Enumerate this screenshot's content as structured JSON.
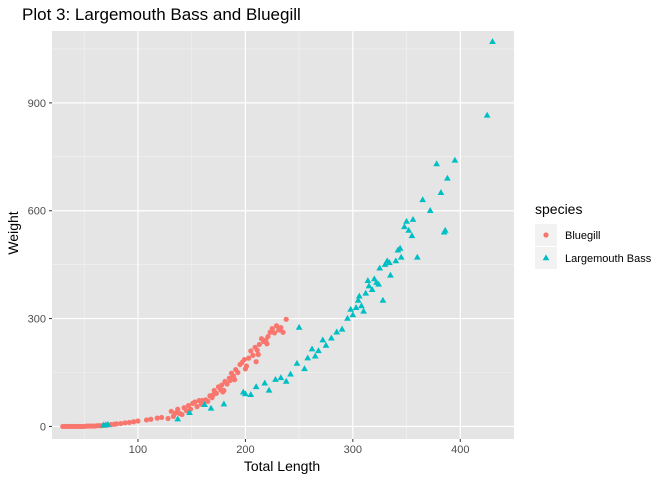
{
  "chart_data": {
    "type": "scatter",
    "title": "Plot 3: Largemouth Bass and Bluegill",
    "xlabel": "Total Length",
    "ylabel": "Weight",
    "xlim": [
      20,
      450
    ],
    "ylim": [
      -35,
      1100
    ],
    "x_ticks": [
      100,
      200,
      300,
      400
    ],
    "y_ticks": [
      0,
      300,
      600,
      900
    ],
    "grid": true,
    "legend": {
      "title": "species",
      "position": "right"
    },
    "series": [
      {
        "name": "Bluegill",
        "color": "#F8766D",
        "shape": "circle",
        "points": [
          [
            30,
            0
          ],
          [
            32,
            0
          ],
          [
            34,
            0
          ],
          [
            36,
            0
          ],
          [
            38,
            0
          ],
          [
            40,
            0
          ],
          [
            42,
            0
          ],
          [
            44,
            0
          ],
          [
            46,
            0
          ],
          [
            48,
            0
          ],
          [
            50,
            0
          ],
          [
            52,
            1
          ],
          [
            54,
            1
          ],
          [
            56,
            1
          ],
          [
            58,
            1
          ],
          [
            60,
            1
          ],
          [
            62,
            2
          ],
          [
            64,
            2
          ],
          [
            66,
            2
          ],
          [
            68,
            3
          ],
          [
            70,
            3
          ],
          [
            72,
            4
          ],
          [
            75,
            5
          ],
          [
            78,
            6
          ],
          [
            80,
            7
          ],
          [
            84,
            8
          ],
          [
            88,
            10
          ],
          [
            92,
            11
          ],
          [
            96,
            13
          ],
          [
            100,
            15
          ],
          [
            108,
            18
          ],
          [
            112,
            20
          ],
          [
            118,
            23
          ],
          [
            122,
            25
          ],
          [
            128,
            22
          ],
          [
            131,
            42
          ],
          [
            133,
            28
          ],
          [
            135,
            37
          ],
          [
            137,
            48
          ],
          [
            139,
            36
          ],
          [
            141,
            33
          ],
          [
            143,
            52
          ],
          [
            145,
            44
          ],
          [
            147,
            58
          ],
          [
            149,
            48
          ],
          [
            151,
            64
          ],
          [
            153,
            68
          ],
          [
            155,
            55
          ],
          [
            157,
            72
          ],
          [
            159,
            62
          ],
          [
            161,
            67
          ],
          [
            163,
            74
          ],
          [
            165,
            70
          ],
          [
            167,
            85
          ],
          [
            169,
            80
          ],
          [
            171,
            100
          ],
          [
            173,
            92
          ],
          [
            175,
            110
          ],
          [
            177,
            102
          ],
          [
            179,
            96
          ],
          [
            181,
            125
          ],
          [
            183,
            118
          ],
          [
            185,
            134
          ],
          [
            187,
            148
          ],
          [
            189,
            140
          ],
          [
            191,
            158
          ],
          [
            193,
            150
          ],
          [
            195,
            172
          ],
          [
            197,
            178
          ],
          [
            199,
            186
          ],
          [
            201,
            168
          ],
          [
            203,
            190
          ],
          [
            205,
            210
          ],
          [
            207,
            198
          ],
          [
            209,
            220
          ],
          [
            211,
            212
          ],
          [
            213,
            228
          ],
          [
            215,
            244
          ],
          [
            217,
            236
          ],
          [
            219,
            240
          ],
          [
            221,
            250
          ],
          [
            223,
            262
          ],
          [
            225,
            272
          ],
          [
            227,
            260
          ],
          [
            229,
            280
          ],
          [
            231,
            268
          ],
          [
            233,
            275
          ],
          [
            235,
            262
          ],
          [
            238,
            298
          ],
          [
            160,
            72
          ],
          [
            170,
            88
          ],
          [
            180,
            100
          ],
          [
            190,
            130
          ],
          [
            200,
            160
          ],
          [
            210,
            180
          ],
          [
            212,
            200
          ],
          [
            220,
            230
          ],
          [
            178,
            115
          ],
          [
            186,
            128
          ]
        ]
      },
      {
        "name": "Largemouth Bass",
        "color": "#00BFC4",
        "shape": "triangle",
        "points": [
          [
            68,
            3
          ],
          [
            70,
            4
          ],
          [
            72,
            5
          ],
          [
            137,
            20
          ],
          [
            148,
            38
          ],
          [
            162,
            60
          ],
          [
            168,
            50
          ],
          [
            180,
            62
          ],
          [
            198,
            95
          ],
          [
            200,
            90
          ],
          [
            205,
            88
          ],
          [
            210,
            110
          ],
          [
            218,
            120
          ],
          [
            222,
            100
          ],
          [
            228,
            130
          ],
          [
            233,
            135
          ],
          [
            238,
            125
          ],
          [
            242,
            145
          ],
          [
            248,
            175
          ],
          [
            250,
            275
          ],
          [
            255,
            160
          ],
          [
            258,
            190
          ],
          [
            262,
            215
          ],
          [
            265,
            195
          ],
          [
            268,
            210
          ],
          [
            272,
            240
          ],
          [
            275,
            225
          ],
          [
            280,
            245
          ],
          [
            285,
            262
          ],
          [
            290,
            270
          ],
          [
            295,
            300
          ],
          [
            300,
            310
          ],
          [
            303,
            330
          ],
          [
            305,
            350
          ],
          [
            308,
            335
          ],
          [
            310,
            320
          ],
          [
            312,
            370
          ],
          [
            315,
            390
          ],
          [
            318,
            380
          ],
          [
            320,
            410
          ],
          [
            322,
            400
          ],
          [
            325,
            440
          ],
          [
            328,
            350
          ],
          [
            330,
            450
          ],
          [
            332,
            460
          ],
          [
            335,
            420
          ],
          [
            340,
            460
          ],
          [
            342,
            490
          ],
          [
            345,
            470
          ],
          [
            348,
            555
          ],
          [
            350,
            570
          ],
          [
            352,
            545
          ],
          [
            355,
            530
          ],
          [
            360,
            470
          ],
          [
            365,
            630
          ],
          [
            372,
            600
          ],
          [
            378,
            730
          ],
          [
            382,
            650
          ],
          [
            385,
            540
          ],
          [
            386,
            545
          ],
          [
            388,
            690
          ],
          [
            395,
            740
          ],
          [
            425,
            865
          ],
          [
            430,
            1070
          ],
          [
            298,
            325
          ],
          [
            306,
            362
          ],
          [
            314,
            405
          ],
          [
            324,
            395
          ],
          [
            334,
            455
          ],
          [
            344,
            495
          ],
          [
            356,
            575
          ]
        ]
      }
    ]
  }
}
